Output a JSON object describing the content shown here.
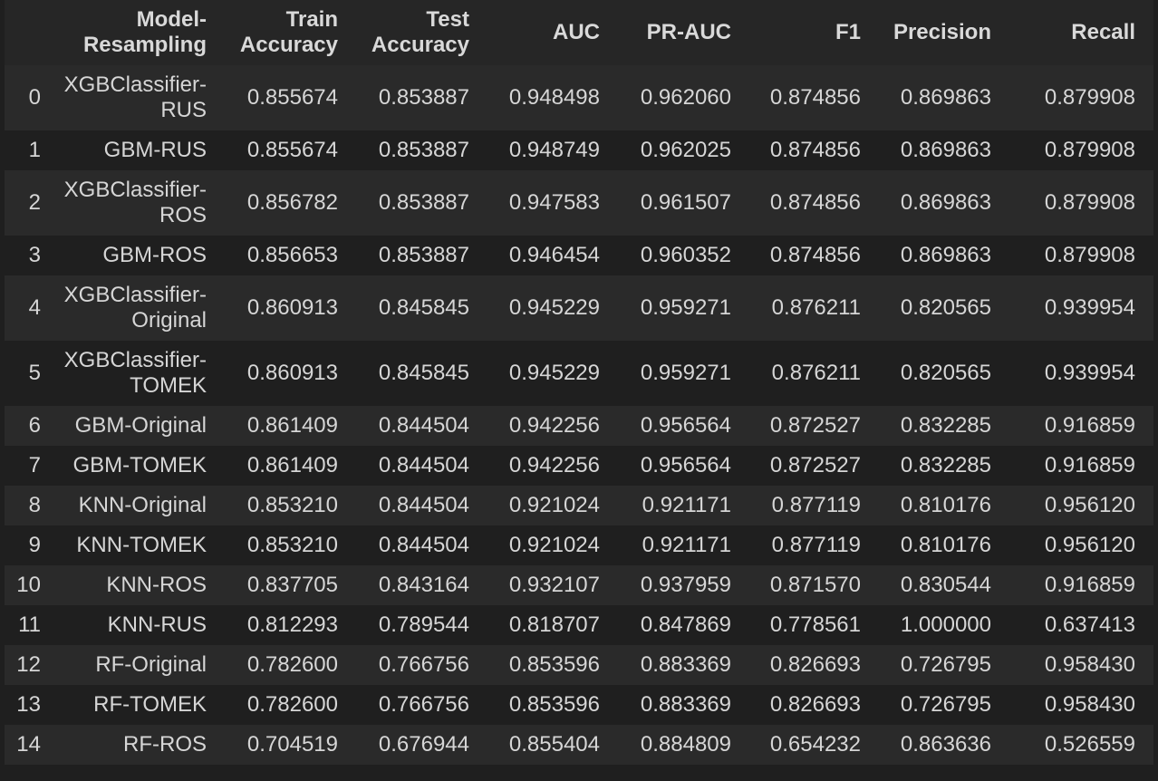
{
  "header": {
    "index": "",
    "model": [
      "Model-",
      "Resampling"
    ],
    "train": [
      "Train",
      "Accuracy"
    ],
    "test": [
      "Test",
      "Accuracy"
    ],
    "auc": "AUC",
    "prauc": "PR-AUC",
    "f1": "F1",
    "precision": "Precision",
    "recall": "Recall"
  },
  "rows": [
    {
      "index": "0",
      "model": [
        "XGBClassifier-",
        "RUS"
      ],
      "train": "0.855674",
      "test": "0.853887",
      "auc": "0.948498",
      "prauc": "0.962060",
      "f1": "0.874856",
      "precision": "0.869863",
      "recall": "0.879908"
    },
    {
      "index": "1",
      "model": [
        "GBM-RUS"
      ],
      "train": "0.855674",
      "test": "0.853887",
      "auc": "0.948749",
      "prauc": "0.962025",
      "f1": "0.874856",
      "precision": "0.869863",
      "recall": "0.879908"
    },
    {
      "index": "2",
      "model": [
        "XGBClassifier-",
        "ROS"
      ],
      "train": "0.856782",
      "test": "0.853887",
      "auc": "0.947583",
      "prauc": "0.961507",
      "f1": "0.874856",
      "precision": "0.869863",
      "recall": "0.879908"
    },
    {
      "index": "3",
      "model": [
        "GBM-ROS"
      ],
      "train": "0.856653",
      "test": "0.853887",
      "auc": "0.946454",
      "prauc": "0.960352",
      "f1": "0.874856",
      "precision": "0.869863",
      "recall": "0.879908"
    },
    {
      "index": "4",
      "model": [
        "XGBClassifier-",
        "Original"
      ],
      "train": "0.860913",
      "test": "0.845845",
      "auc": "0.945229",
      "prauc": "0.959271",
      "f1": "0.876211",
      "precision": "0.820565",
      "recall": "0.939954"
    },
    {
      "index": "5",
      "model": [
        "XGBClassifier-",
        "TOMEK"
      ],
      "train": "0.860913",
      "test": "0.845845",
      "auc": "0.945229",
      "prauc": "0.959271",
      "f1": "0.876211",
      "precision": "0.820565",
      "recall": "0.939954"
    },
    {
      "index": "6",
      "model": [
        "GBM-Original"
      ],
      "train": "0.861409",
      "test": "0.844504",
      "auc": "0.942256",
      "prauc": "0.956564",
      "f1": "0.872527",
      "precision": "0.832285",
      "recall": "0.916859"
    },
    {
      "index": "7",
      "model": [
        "GBM-TOMEK"
      ],
      "train": "0.861409",
      "test": "0.844504",
      "auc": "0.942256",
      "prauc": "0.956564",
      "f1": "0.872527",
      "precision": "0.832285",
      "recall": "0.916859"
    },
    {
      "index": "8",
      "model": [
        "KNN-Original"
      ],
      "train": "0.853210",
      "test": "0.844504",
      "auc": "0.921024",
      "prauc": "0.921171",
      "f1": "0.877119",
      "precision": "0.810176",
      "recall": "0.956120"
    },
    {
      "index": "9",
      "model": [
        "KNN-TOMEK"
      ],
      "train": "0.853210",
      "test": "0.844504",
      "auc": "0.921024",
      "prauc": "0.921171",
      "f1": "0.877119",
      "precision": "0.810176",
      "recall": "0.956120"
    },
    {
      "index": "10",
      "model": [
        "KNN-ROS"
      ],
      "train": "0.837705",
      "test": "0.843164",
      "auc": "0.932107",
      "prauc": "0.937959",
      "f1": "0.871570",
      "precision": "0.830544",
      "recall": "0.916859"
    },
    {
      "index": "11",
      "model": [
        "KNN-RUS"
      ],
      "train": "0.812293",
      "test": "0.789544",
      "auc": "0.818707",
      "prauc": "0.847869",
      "f1": "0.778561",
      "precision": "1.000000",
      "recall": "0.637413"
    },
    {
      "index": "12",
      "model": [
        "RF-Original"
      ],
      "train": "0.782600",
      "test": "0.766756",
      "auc": "0.853596",
      "prauc": "0.883369",
      "f1": "0.826693",
      "precision": "0.726795",
      "recall": "0.958430"
    },
    {
      "index": "13",
      "model": [
        "RF-TOMEK"
      ],
      "train": "0.782600",
      "test": "0.766756",
      "auc": "0.853596",
      "prauc": "0.883369",
      "f1": "0.826693",
      "precision": "0.726795",
      "recall": "0.958430"
    },
    {
      "index": "14",
      "model": [
        "RF-ROS"
      ],
      "train": "0.704519",
      "test": "0.676944",
      "auc": "0.855404",
      "prauc": "0.884809",
      "f1": "0.654232",
      "precision": "0.863636",
      "recall": "0.526559"
    }
  ]
}
